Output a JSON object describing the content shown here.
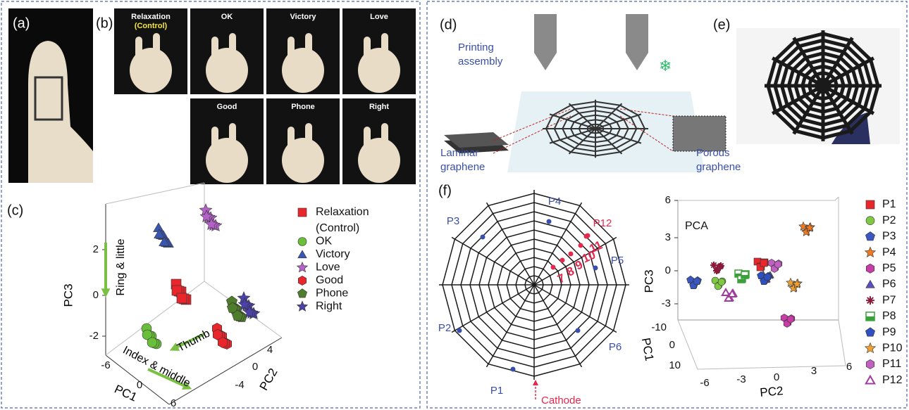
{
  "panel_labels": [
    "(a)",
    "(b)",
    "(c)",
    "(d)",
    "(e)",
    "(f)"
  ],
  "gesture_photos": [
    {
      "label": "Relaxation",
      "sublabel": "(Control)"
    },
    {
      "label": "OK"
    },
    {
      "label": "Victory"
    },
    {
      "label": "Love"
    },
    {
      "label": "Good"
    },
    {
      "label": "Phone"
    },
    {
      "label": "Right"
    }
  ],
  "gesture_plot": {
    "legend": [
      {
        "name": "Relaxation",
        "name_line2": "(Control)",
        "marker": "square",
        "color": "#e8262b"
      },
      {
        "name": "OK",
        "marker": "circle",
        "color": "#6abf3a"
      },
      {
        "name": "Victory",
        "marker": "triangle",
        "color": "#3a56b0"
      },
      {
        "name": "Love",
        "marker": "star",
        "color": "#b462c8"
      },
      {
        "name": "Good",
        "marker": "hexagon",
        "color": "#e8262b"
      },
      {
        "name": "Phone",
        "marker": "pentagon",
        "color": "#4e7d2c"
      },
      {
        "name": "Right",
        "marker": "star",
        "color": "#4a42a8"
      }
    ],
    "z_label": "PC3",
    "z_ticks": [
      "2",
      "0",
      "-2"
    ],
    "x_label": "PC1",
    "x_ticks": [
      "-6",
      "0",
      "6"
    ],
    "y_label": "PC2",
    "y_ticks": [
      "4",
      "0",
      "-4"
    ],
    "annotations": [
      "Ring & little",
      "Thumb",
      "Index & middle"
    ]
  },
  "printing_schematic": {
    "printing": [
      "Printing",
      "assembly"
    ],
    "laminar": [
      "Laminar",
      "graphene"
    ],
    "porous": [
      "Porous",
      "graphene"
    ]
  },
  "web_sensor": {
    "points": [
      "P1",
      "P2",
      "P3",
      "P4",
      "P5",
      "P6",
      "P12"
    ],
    "sequence": [
      "7",
      "8",
      "9",
      "10",
      "11"
    ],
    "cathode": "Cathode"
  },
  "pca_plot": {
    "title": "PCA",
    "z_label": "PC3",
    "z_ticks": [
      "6",
      "3",
      "0",
      "-3"
    ],
    "x_label": "PC1",
    "x_ticks": [
      "-10",
      "0",
      "10"
    ],
    "y_label": "PC2",
    "y_ticks": [
      "-6",
      "-3",
      "0",
      "3",
      "6"
    ],
    "legend": [
      {
        "name": "P1",
        "marker": "square",
        "color": "#e8262b"
      },
      {
        "name": "P2",
        "marker": "circle",
        "color": "#7ec843"
      },
      {
        "name": "P3",
        "marker": "pentagon",
        "color": "#3a56c0"
      },
      {
        "name": "P4",
        "marker": "star",
        "color": "#f07a22"
      },
      {
        "name": "P5",
        "marker": "hexagon",
        "color": "#c83ca8"
      },
      {
        "name": "P6",
        "marker": "triangle",
        "color": "#5a4ec0"
      },
      {
        "name": "P7",
        "marker": "cross",
        "color": "#8a1a3a"
      },
      {
        "name": "P8",
        "marker": "halfsquare",
        "color": "#3aa03a"
      },
      {
        "name": "P9",
        "marker": "pentagon",
        "color": "#3050c0"
      },
      {
        "name": "P10",
        "marker": "star",
        "color": "#f0a030"
      },
      {
        "name": "P11",
        "marker": "hexagon",
        "color": "#c060c0"
      },
      {
        "name": "P12",
        "marker": "opentriangle",
        "color": "#a03ca0"
      }
    ]
  }
}
